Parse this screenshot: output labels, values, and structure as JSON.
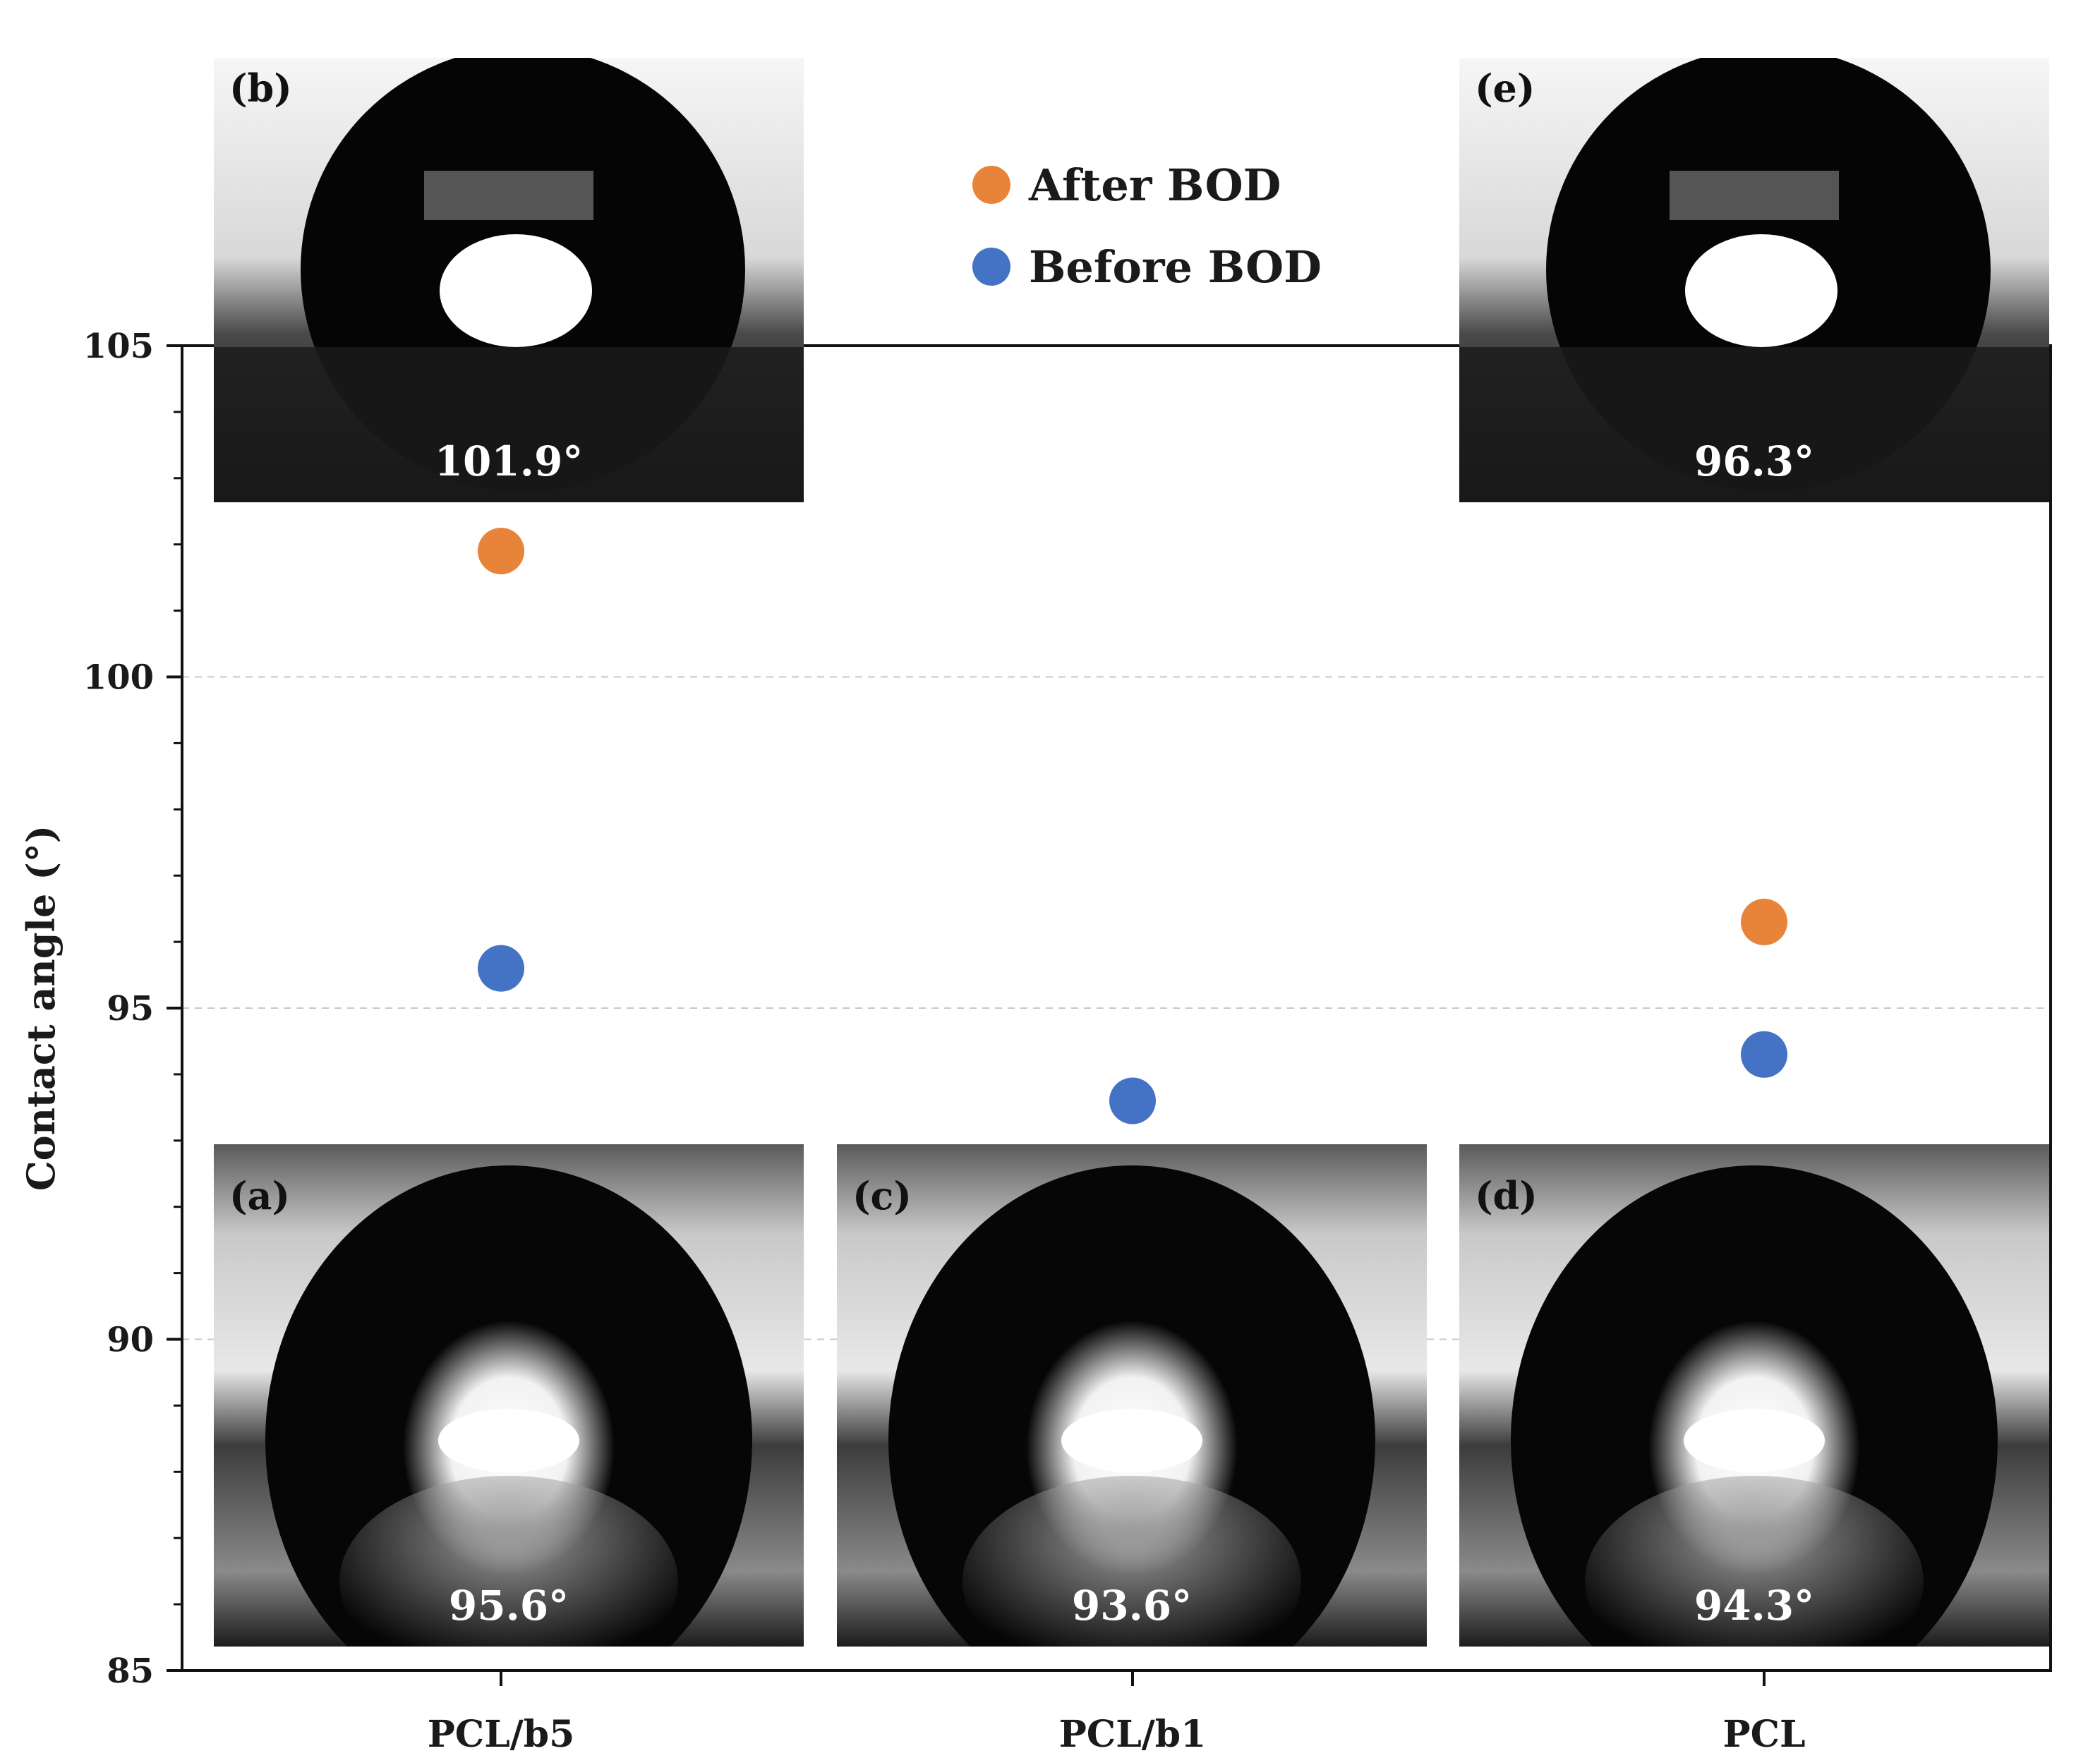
{
  "chart_data": {
    "type": "scatter",
    "ylabel": "Contact angle (°)",
    "xlabel": "",
    "ylim": [
      85,
      105
    ],
    "yticks": [
      85,
      90,
      95,
      100,
      105
    ],
    "grid": "horizontal dashed",
    "legend_position": "top-center",
    "categories": [
      "PCL/b5",
      "PCL/b1",
      "PCL"
    ],
    "series": [
      {
        "name": "After BOD",
        "color": "#e8833a",
        "values": [
          101.9,
          null,
          96.3
        ]
      },
      {
        "name": "Before BOD",
        "color": "#4472c4",
        "values": [
          95.6,
          93.6,
          94.3
        ]
      }
    ]
  },
  "insets": [
    {
      "letter": "(b)",
      "angle": "101.9°",
      "category": "PCL/b5",
      "position": "top"
    },
    {
      "letter": "(e)",
      "angle": "96.3°",
      "category": "PCL",
      "position": "top"
    },
    {
      "letter": "(a)",
      "angle": "95.6°",
      "category": "PCL/b5",
      "position": "bottom"
    },
    {
      "letter": "(c)",
      "angle": "93.6°",
      "category": "PCL/b1",
      "position": "bottom"
    },
    {
      "letter": "(d)",
      "angle": "94.3°",
      "category": "PCL",
      "position": "bottom"
    }
  ]
}
